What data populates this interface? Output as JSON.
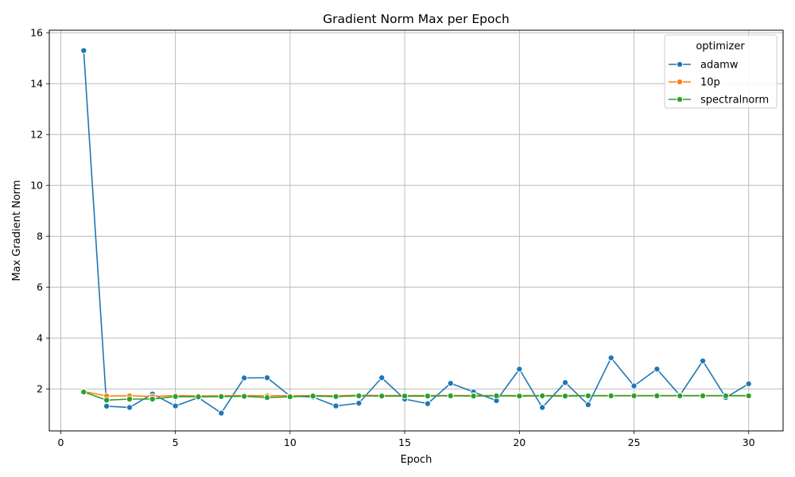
{
  "chart_data": {
    "type": "line",
    "title": "Gradient Norm Max per Epoch",
    "xlabel": "Epoch",
    "ylabel": "Max Gradient Norm",
    "xlim": [
      -0.5,
      31.5
    ],
    "ylim": [
      0.35,
      16.1
    ],
    "xticks": [
      0,
      5,
      10,
      15,
      20,
      25,
      30
    ],
    "yticks": [
      2,
      4,
      6,
      8,
      10,
      12,
      14,
      16
    ],
    "grid": true,
    "legend": {
      "title": "optimizer",
      "placement": "top-right"
    },
    "x": [
      1,
      2,
      3,
      4,
      5,
      6,
      7,
      8,
      9,
      10,
      11,
      12,
      13,
      14,
      15,
      16,
      17,
      18,
      19,
      20,
      21,
      22,
      23,
      24,
      25,
      26,
      27,
      28,
      29,
      30
    ],
    "series": [
      {
        "name": "adamw",
        "color": "#1f77b4",
        "values": [
          15.3,
          1.32,
          1.27,
          1.8,
          1.33,
          1.66,
          1.05,
          2.43,
          2.44,
          1.72,
          1.68,
          1.33,
          1.44,
          2.44,
          1.6,
          1.42,
          2.22,
          1.88,
          1.54,
          2.78,
          1.27,
          2.25,
          1.38,
          3.22,
          2.12,
          2.78,
          1.75,
          3.1,
          1.66,
          2.2
        ]
      },
      {
        "name": "10p",
        "color": "#ff7f0e",
        "values": [
          1.9,
          1.72,
          1.73,
          1.7,
          1.74,
          1.72,
          1.73,
          1.74,
          1.73,
          1.73,
          1.74,
          1.73,
          1.75,
          1.74,
          1.74,
          1.74,
          1.74,
          1.74,
          1.74,
          1.74,
          1.74,
          1.74,
          1.74,
          1.74,
          1.74,
          1.74,
          1.74,
          1.74,
          1.74,
          1.74
        ]
      },
      {
        "name": "spectralnorm",
        "color": "#2ca02c",
        "values": [
          1.88,
          1.56,
          1.6,
          1.6,
          1.7,
          1.69,
          1.7,
          1.71,
          1.66,
          1.69,
          1.72,
          1.7,
          1.73,
          1.72,
          1.72,
          1.72,
          1.73,
          1.72,
          1.73,
          1.72,
          1.73,
          1.72,
          1.73,
          1.73,
          1.73,
          1.73,
          1.73,
          1.73,
          1.73,
          1.73
        ]
      }
    ]
  }
}
